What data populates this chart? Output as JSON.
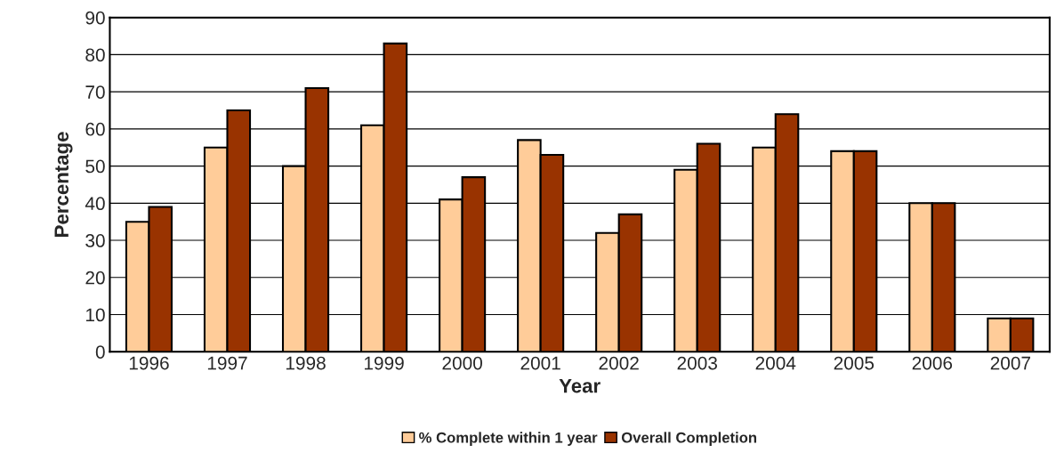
{
  "chart_data": {
    "type": "bar",
    "xlabel": "Year",
    "ylabel": "Percentage",
    "categories": [
      "1996",
      "1997",
      "1998",
      "1999",
      "2000",
      "2001",
      "2002",
      "2003",
      "2004",
      "2005",
      "2006",
      "2007"
    ],
    "series": [
      {
        "name": "% Complete within 1 year",
        "color": "#ffcc99",
        "values": [
          35,
          55,
          50,
          61,
          41,
          57,
          32,
          49,
          55,
          54,
          40,
          9
        ]
      },
      {
        "name": "Overall Completion",
        "color": "#993300",
        "values": [
          39,
          65,
          71,
          83,
          47,
          53,
          37,
          56,
          64,
          54,
          40,
          9
        ]
      }
    ],
    "ylim": [
      0,
      90
    ],
    "yticks": [
      0,
      10,
      20,
      30,
      40,
      50,
      60,
      70,
      80,
      90
    ],
    "grid": "y",
    "legend": "bottom"
  }
}
